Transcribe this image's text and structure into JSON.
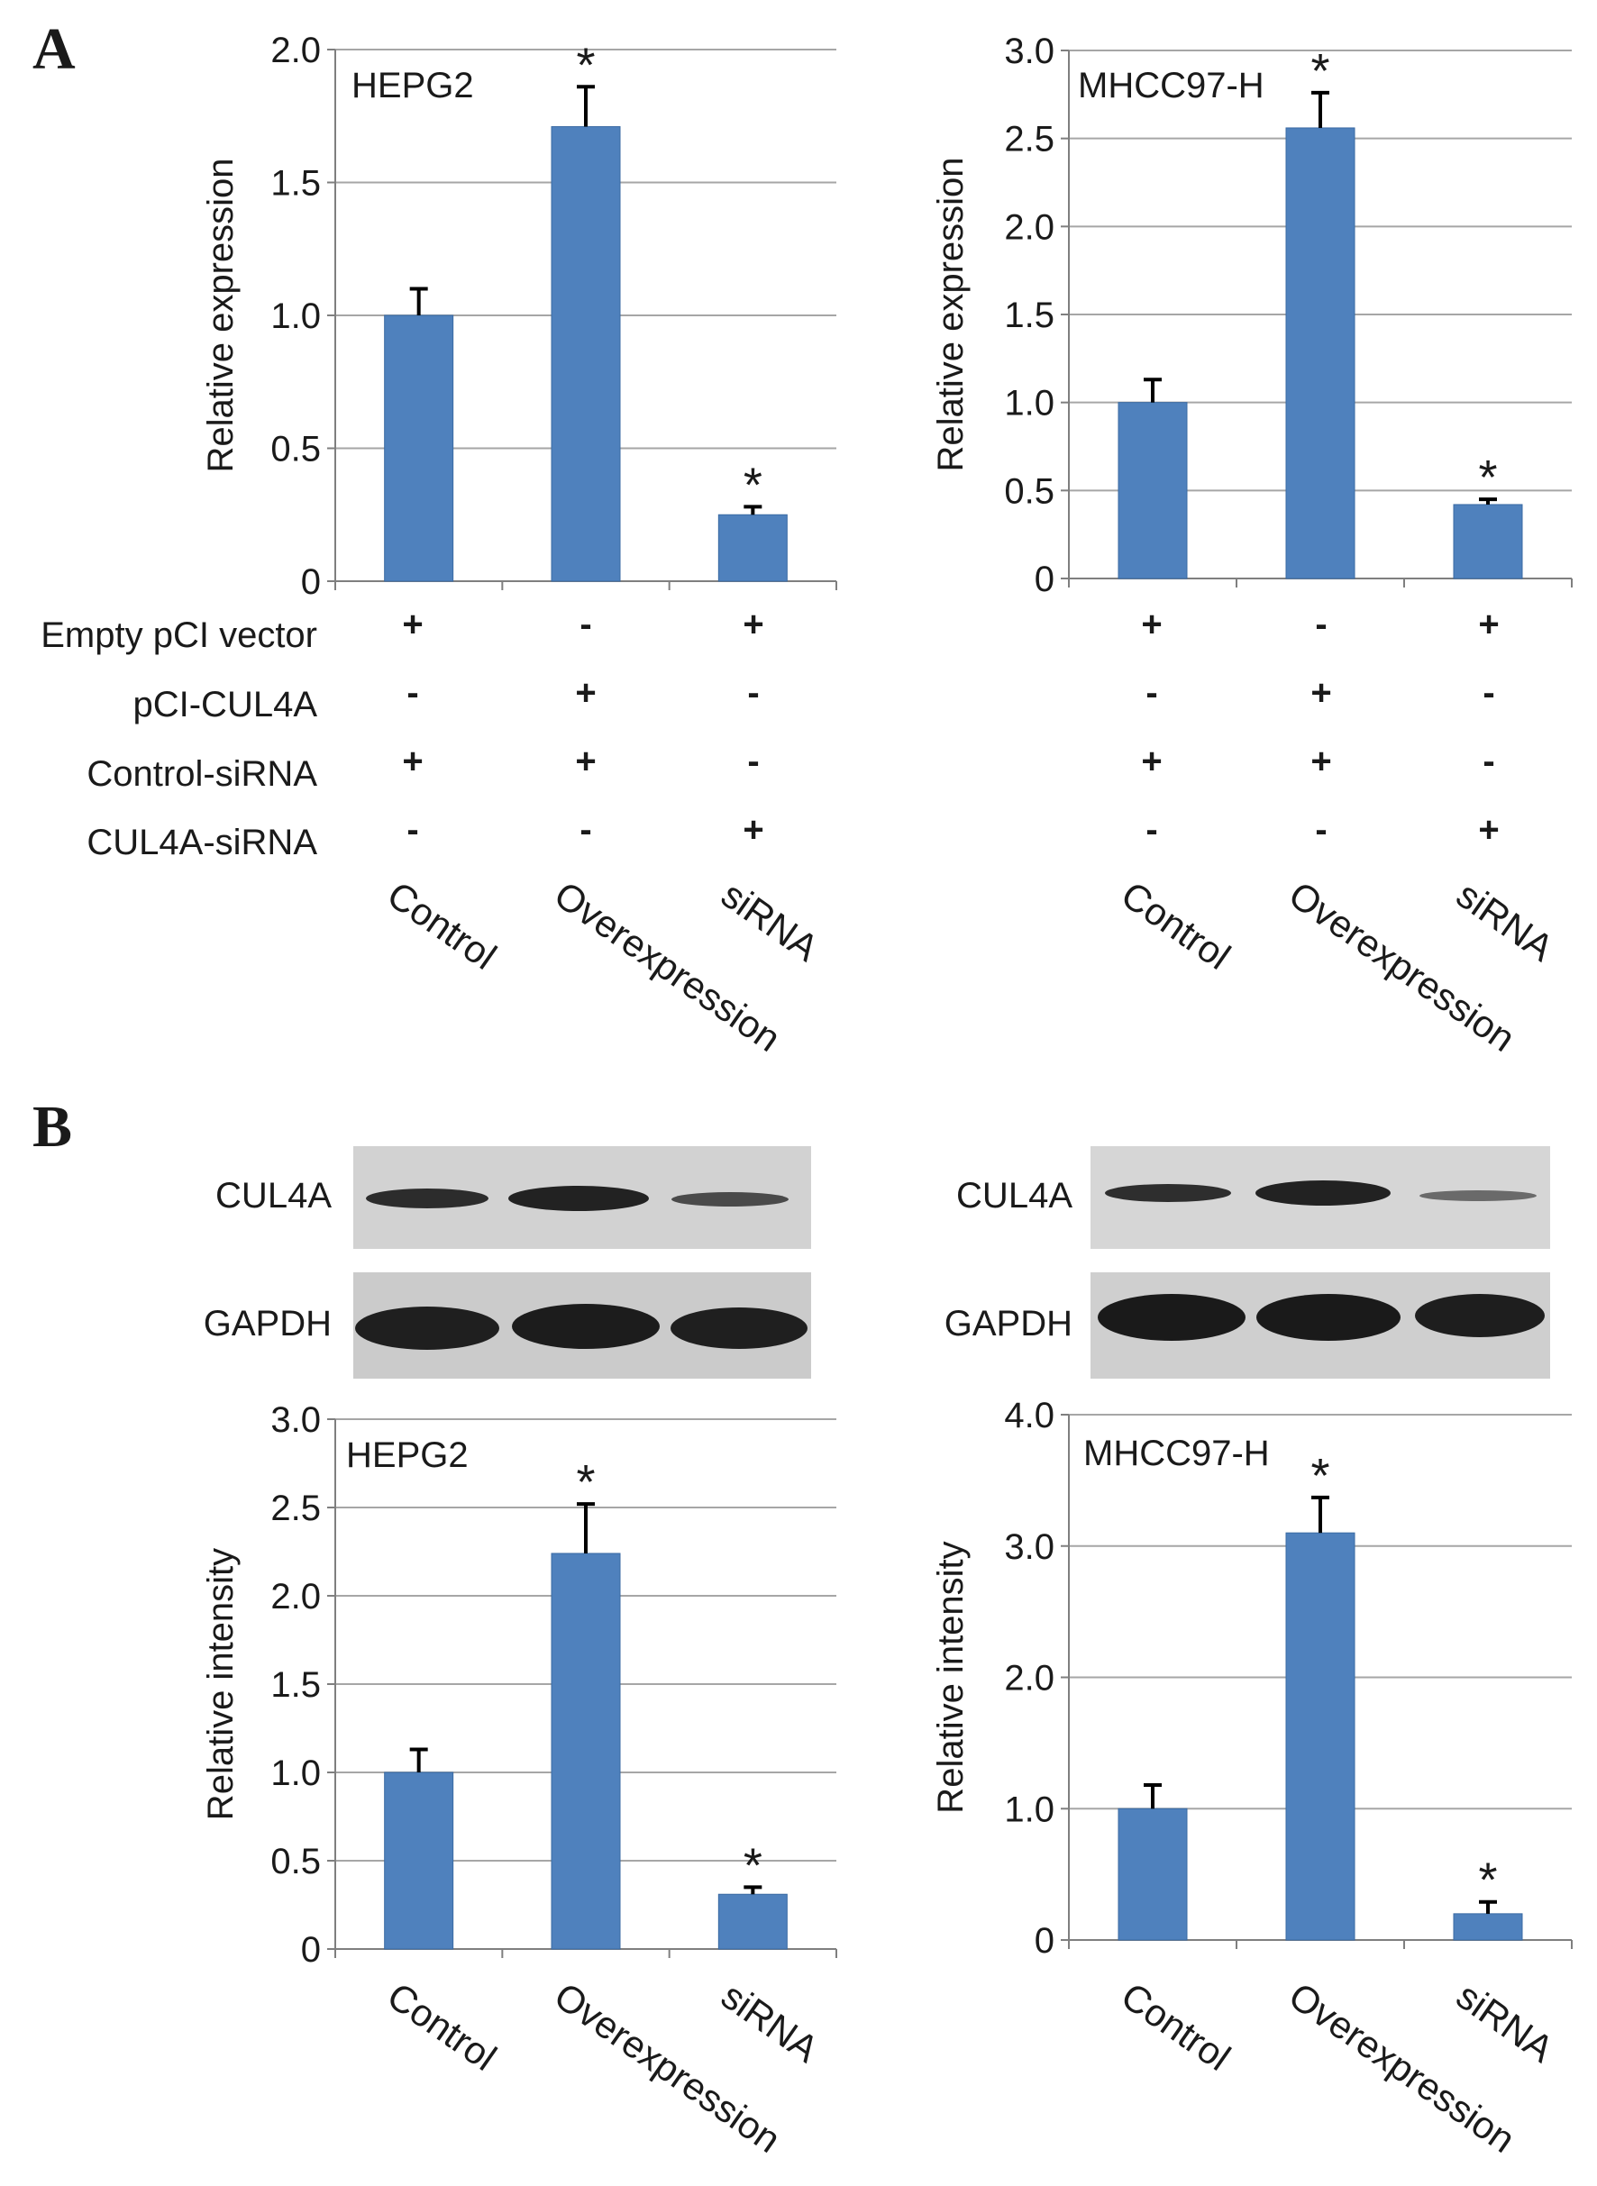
{
  "panels": {
    "a": {
      "letter": "A"
    },
    "b": {
      "letter": "B"
    }
  },
  "treatment_table": {
    "rows": [
      {
        "label": "Empty pCI vector",
        "signs": [
          "+",
          "-",
          "+"
        ]
      },
      {
        "label": "pCI-CUL4A",
        "signs": [
          "-",
          "+",
          "-"
        ]
      },
      {
        "label": "Control-siRNA",
        "signs": [
          "+",
          "+",
          "-"
        ]
      },
      {
        "label": "CUL4A-siRNA",
        "signs": [
          "-",
          "-",
          "+"
        ]
      }
    ]
  },
  "blots": {
    "left": {
      "band_labels": [
        "CUL4A",
        "GAPDH"
      ]
    },
    "right": {
      "band_labels": [
        "CUL4A",
        "GAPDH"
      ]
    }
  },
  "colors": {
    "bar": "#4f81bd",
    "bar_edge": "#3a6aa3",
    "gridline": "#a6a6a6",
    "axis": "#7f7f7f",
    "text": "#1a1a1a"
  },
  "chart_data": [
    {
      "id": "a-hepg2",
      "type": "bar",
      "title": "HEPG2",
      "ylabel": "Relative expression",
      "xlabel": "",
      "categories": [
        "Control",
        "Overexpression",
        "siRNA"
      ],
      "ylim": [
        0,
        2.0
      ],
      "yticks": [
        0,
        0.5,
        1.0,
        1.5,
        2.0
      ],
      "ytick_labels": [
        "0",
        "0.5",
        "1.0",
        "1.5",
        "2.0"
      ],
      "values": [
        1.0,
        1.71,
        0.25
      ],
      "errors": [
        0.1,
        0.15,
        0.03
      ],
      "significance": [
        "",
        "*",
        "*"
      ],
      "grid": true
    },
    {
      "id": "a-mhcc97h",
      "type": "bar",
      "title": "MHCC97-H",
      "ylabel": "Relative expression",
      "xlabel": "",
      "categories": [
        "Control",
        "Overexpression",
        "siRNA"
      ],
      "ylim": [
        0,
        3.0
      ],
      "yticks": [
        0,
        0.5,
        1.0,
        1.5,
        2.0,
        2.5,
        3.0
      ],
      "ytick_labels": [
        "0",
        "0.5",
        "1.0",
        "1.5",
        "2.0",
        "2.5",
        "3.0"
      ],
      "values": [
        1.0,
        2.56,
        0.42
      ],
      "errors": [
        0.13,
        0.2,
        0.03
      ],
      "significance": [
        "",
        "*",
        "*"
      ],
      "grid": true
    },
    {
      "id": "b-hepg2",
      "type": "bar",
      "title": "HEPG2",
      "ylabel": "Relative intensity",
      "xlabel": "",
      "categories": [
        "Control",
        "Overexpression",
        "siRNA"
      ],
      "ylim": [
        0,
        3.0
      ],
      "yticks": [
        0,
        0.5,
        1.0,
        1.5,
        2.0,
        2.5,
        3.0
      ],
      "ytick_labels": [
        "0",
        "0.5",
        "1.0",
        "1.5",
        "2.0",
        "2.5",
        "3.0"
      ],
      "values": [
        1.0,
        2.24,
        0.31
      ],
      "errors": [
        0.13,
        0.28,
        0.04
      ],
      "significance": [
        "",
        "*",
        "*"
      ],
      "grid": true
    },
    {
      "id": "b-mhcc97h",
      "type": "bar",
      "title": "MHCC97-H",
      "ylabel": "Relative intensity",
      "xlabel": "",
      "categories": [
        "Control",
        "Overexpression",
        "siRNA"
      ],
      "ylim": [
        0,
        4.0
      ],
      "yticks": [
        0,
        1.0,
        2.0,
        3.0,
        4.0
      ],
      "ytick_labels": [
        "0",
        "1.0",
        "2.0",
        "3.0",
        "4.0"
      ],
      "values": [
        1.0,
        3.1,
        0.2
      ],
      "errors": [
        0.18,
        0.27,
        0.09
      ],
      "significance": [
        "",
        "*",
        "*"
      ],
      "grid": true
    }
  ]
}
